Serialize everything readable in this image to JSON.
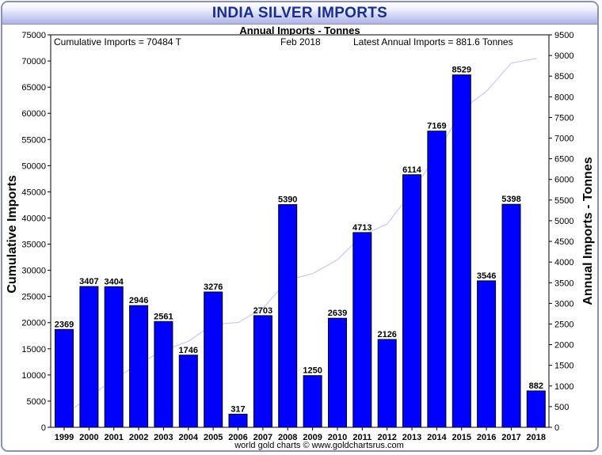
{
  "header": {
    "title": "INDIA SILVER IMPORTS",
    "subtitle": "Annual Imports - Tonnes"
  },
  "info": {
    "cumulative": "Cumulative Imports = 70484 T",
    "date": "Feb 2018",
    "latest": "Latest Annual Imports = 881.6 Tonnes"
  },
  "footer": {
    "credit": "world gold charts © www.goldchartsrus.com"
  },
  "colors": {
    "bar": "#0000ff",
    "line": "#c8c8ff",
    "title": "#1a2e8c"
  },
  "chart_data": {
    "type": "bar",
    "title": "INDIA SILVER IMPORTS",
    "subtitle": "Annual Imports - Tonnes",
    "categories": [
      "1999",
      "2000",
      "2001",
      "2002",
      "2003",
      "2004",
      "2005",
      "2006",
      "2007",
      "2008",
      "2009",
      "2010",
      "2011",
      "2012",
      "2013",
      "2014",
      "2015",
      "2016",
      "2017",
      "2018"
    ],
    "series": [
      {
        "name": "Annual Imports - Tonnes",
        "axis": "right",
        "values": [
          2369,
          3407,
          3404,
          2946,
          2561,
          1746,
          3276,
          317,
          2703,
          5390,
          1250,
          2639,
          4713,
          2126,
          6114,
          7169,
          8529,
          3546,
          5398,
          882
        ]
      },
      {
        "name": "Cumulative Imports",
        "axis": "left",
        "type": "line",
        "values": [
          2369,
          5776,
          9180,
          12126,
          14687,
          16433,
          19709,
          20026,
          22729,
          28119,
          29369,
          32008,
          36721,
          38847,
          44961,
          52130,
          60659,
          64205,
          69603,
          70484
        ]
      }
    ],
    "ylabel_left": "Cumulative Imports",
    "ylabel_right": "Annual Imports - Tonnes",
    "ylim_left": [
      0,
      75000
    ],
    "ylim_right": [
      0,
      9500
    ],
    "yticks_left": [
      0,
      5000,
      10000,
      15000,
      20000,
      25000,
      30000,
      35000,
      40000,
      45000,
      50000,
      55000,
      60000,
      65000,
      70000,
      75000
    ],
    "yticks_right": [
      0,
      500,
      1000,
      1500,
      2000,
      2500,
      3000,
      3500,
      4000,
      4500,
      5000,
      5500,
      6000,
      6500,
      7000,
      7500,
      8000,
      8500,
      9000,
      9500
    ],
    "grid": false,
    "data_labels": true
  }
}
